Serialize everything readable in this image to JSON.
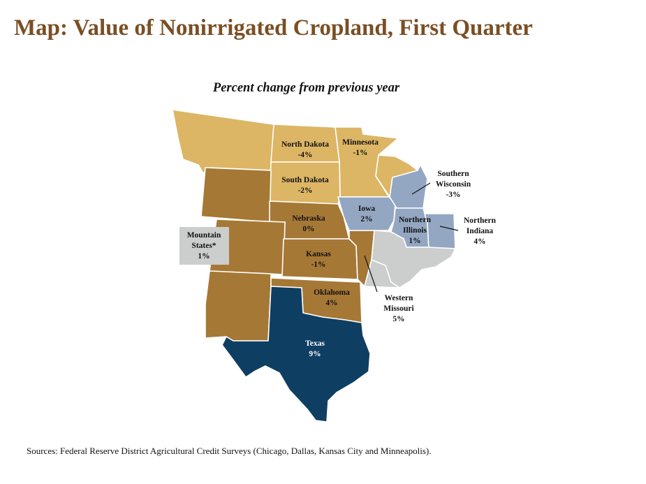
{
  "title": "Map: Value of Nonirrigated Cropland, First Quarter",
  "subtitle": "Percent change from previous year",
  "source": "Sources: Federal Reserve District Agricultural Credit Surveys (Chicago, Dallas, Kansas City and Minneapolis).",
  "colors": {
    "light_tan": "#dcb665",
    "brown": "#a67836",
    "light_blue": "#93a7c2",
    "navy": "#0f3e63",
    "gray": "#cccdcd"
  },
  "regions": {
    "north_dakota": {
      "name": "North Dakota",
      "value": "-4%"
    },
    "minnesota": {
      "name": "Minnesota",
      "value": "-1%"
    },
    "south_dakota": {
      "name": "South Dakota",
      "value": "-2%"
    },
    "southern_wisconsin": {
      "name1": "Southern",
      "name2": "Wisconsin",
      "value": "-3%"
    },
    "iowa": {
      "name": "Iowa",
      "value": "2%"
    },
    "nebraska": {
      "name": "Nebraska",
      "value": "0%"
    },
    "northern_illinois": {
      "name1": "Northern",
      "name2": "Illinois",
      "value": "1%"
    },
    "northern_indiana": {
      "name1": "Northern",
      "name2": "Indiana",
      "value": "4%"
    },
    "mountain_states": {
      "name1": "Mountain",
      "name2": "States*",
      "value": "1%"
    },
    "kansas": {
      "name": "Kansas",
      "value": "-1%"
    },
    "western_missouri": {
      "name1": "Western",
      "name2": "Missouri",
      "value": "5%"
    },
    "oklahoma": {
      "name": "Oklahoma",
      "value": "4%"
    },
    "texas": {
      "name": "Texas",
      "value": "9%"
    }
  }
}
